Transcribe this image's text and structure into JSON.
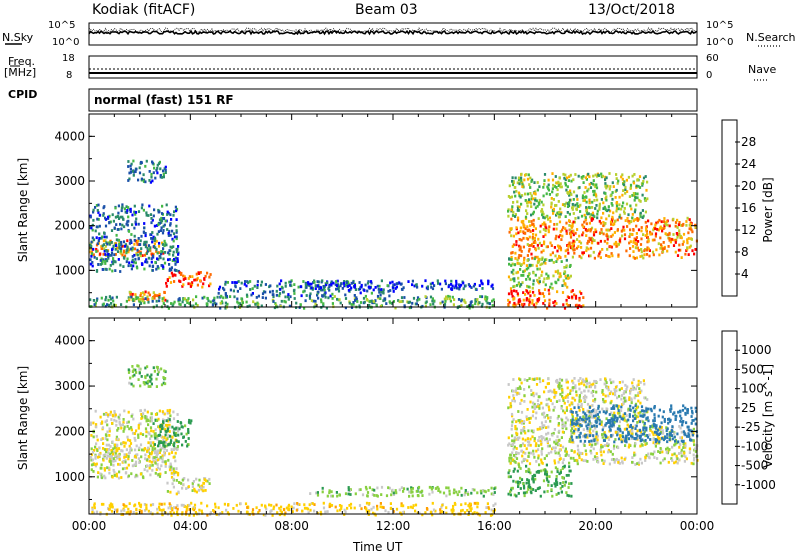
{
  "header": {
    "station": "Kodiak (fitACF)",
    "beam": "Beam 03",
    "date": "13/Oct/2018"
  },
  "status_panel": {
    "nsky_label": "N.Sky",
    "nsearch_label": "N.Search",
    "nsky_ticks": [
      "10^5",
      "10^0"
    ],
    "nsearch_ticks": [
      "10^5",
      "10^0"
    ],
    "freq_label_1": "Freq.",
    "freq_label_2": "[MHz]",
    "freq_ticks": [
      "18",
      "8"
    ],
    "nave_label": "Nave",
    "nave_ticks": [
      "60",
      "0"
    ],
    "cpid_label": "CPID",
    "cpid_value": "normal (fast) 151 RF"
  },
  "chart_data": [
    {
      "type": "heatmap",
      "quantity": "power",
      "ylabel": "Slant Range [km]",
      "ylim": [
        180,
        4500
      ],
      "yticks": [
        "1000",
        "2000",
        "3000",
        "4000"
      ],
      "xlim": [
        0,
        24
      ],
      "colorbar": {
        "label": "Power [dB]",
        "ticks": [
          "4",
          "8",
          "12",
          "16",
          "20",
          "24",
          "28"
        ],
        "colors": [
          "#0000ff",
          "#1a50a8",
          "#2a8a6a",
          "#44b844",
          "#b8d030",
          "#ffb000",
          "#ff6a00",
          "#ff0000"
        ]
      },
      "regions": [
        {
          "t": [
            0.0,
            3.0
          ],
          "r": [
            1350,
            1700
          ],
          "level": 22
        },
        {
          "t": [
            0.0,
            3.5
          ],
          "r": [
            1000,
            2500
          ],
          "level": 8
        },
        {
          "t": [
            1.5,
            3.0
          ],
          "r": [
            3000,
            3500
          ],
          "level": 8
        },
        {
          "t": [
            3.0,
            4.8
          ],
          "r": [
            650,
            1000
          ],
          "level": 26
        },
        {
          "t": [
            1.5,
            3.0
          ],
          "r": [
            350,
            550
          ],
          "level": 22
        },
        {
          "t": [
            0.0,
            16.0
          ],
          "r": [
            180,
            450
          ],
          "level": 12
        },
        {
          "t": [
            5.0,
            12.0
          ],
          "r": [
            450,
            800
          ],
          "level": 8
        },
        {
          "t": [
            8.5,
            16.0
          ],
          "r": [
            600,
            800
          ],
          "level": 4
        },
        {
          "t": [
            16.5,
            24.0
          ],
          "r": [
            1300,
            2200
          ],
          "level": 22
        },
        {
          "t": [
            16.5,
            22.0
          ],
          "r": [
            2200,
            3200
          ],
          "level": 14
        },
        {
          "t": [
            16.5,
            19.5
          ],
          "r": [
            180,
            600
          ],
          "level": 28
        },
        {
          "t": [
            16.5,
            19.0
          ],
          "r": [
            600,
            1300
          ],
          "level": 16
        }
      ]
    },
    {
      "type": "heatmap",
      "quantity": "velocity",
      "ylabel": "Slant Range [km]",
      "xlabel": "Time UT",
      "ylim": [
        180,
        4500
      ],
      "yticks": [
        "1000",
        "2000",
        "3000",
        "4000"
      ],
      "xlim": [
        0,
        24
      ],
      "xticks": [
        "00:00",
        "04:00",
        "08:00",
        "12:00",
        "16:00",
        "20:00",
        "00:00"
      ],
      "colorbar": {
        "label": "Velocity [m s^-1]",
        "ticks": [
          "1000",
          "500",
          "100",
          "25",
          "-25",
          "-100",
          "-500",
          "-1000"
        ],
        "colors": [
          "#1a50c8",
          "#2a7ab0",
          "#2a9a50",
          "#88d040",
          "#c8c8c8",
          "#ffd000",
          "#ffa000",
          "#ff5000",
          "#ff0000"
        ]
      },
      "regions": [
        {
          "t": [
            0.0,
            3.0
          ],
          "r": [
            1350,
            1700
          ],
          "v": 0
        },
        {
          "t": [
            0.0,
            3.5
          ],
          "r": [
            1000,
            2500
          ],
          "v": 0
        },
        {
          "t": [
            1.5,
            3.0
          ],
          "r": [
            3000,
            3500
          ],
          "v": 80
        },
        {
          "t": [
            3.0,
            4.8
          ],
          "r": [
            650,
            1000
          ],
          "v": 0
        },
        {
          "t": [
            2.5,
            4.0
          ],
          "r": [
            1700,
            2300
          ],
          "v": 150
        },
        {
          "t": [
            0.0,
            16.0
          ],
          "r": [
            180,
            450
          ],
          "v": -60
        },
        {
          "t": [
            8.5,
            16.0
          ],
          "r": [
            600,
            800
          ],
          "v": 60
        },
        {
          "t": [
            16.5,
            24.0
          ],
          "r": [
            1300,
            2200
          ],
          "v": 0
        },
        {
          "t": [
            16.5,
            22.0
          ],
          "r": [
            2200,
            3200
          ],
          "v": 0
        },
        {
          "t": [
            19.0,
            24.0
          ],
          "r": [
            1800,
            2600
          ],
          "v": 600
        },
        {
          "t": [
            16.5,
            19.0
          ],
          "r": [
            600,
            1300
          ],
          "v": 120
        }
      ]
    }
  ]
}
